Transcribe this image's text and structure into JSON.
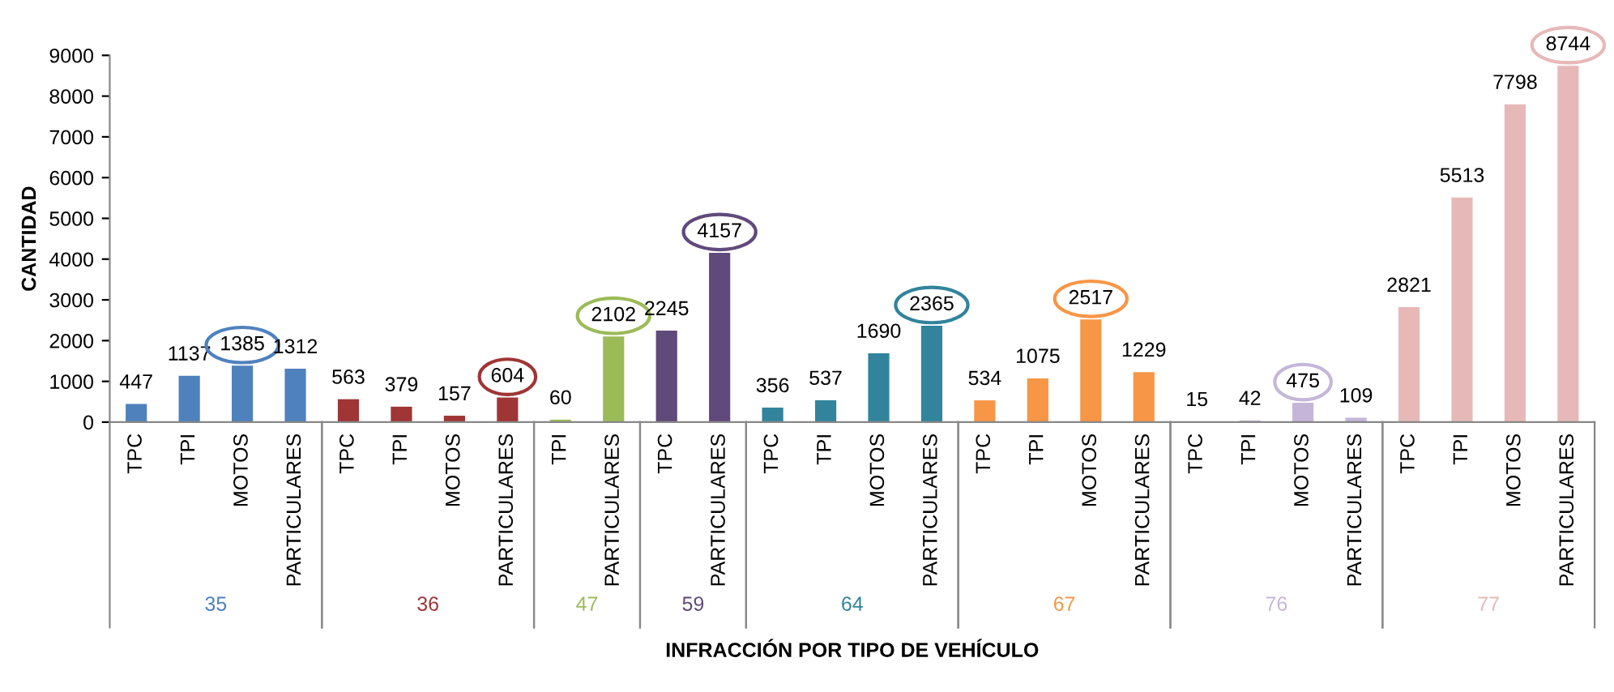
{
  "chart_data": {
    "type": "bar",
    "xlabel": "INFRACCIÓN POR TIPO DE VEHÍCULO",
    "ylabel": "CANTIDAD",
    "categories": [
      "TPC",
      "TPI",
      "MOTOS",
      "PARTICULARES",
      "TPC",
      "TPI",
      "MOTOS",
      "PARTICULARES",
      "TPI",
      "PARTICULARES",
      "TPC",
      "PARTICULARES",
      "TPC",
      "TPI",
      "MOTOS",
      "PARTICULARES",
      "TPC",
      "TPI",
      "MOTOS",
      "PARTICULARES",
      "TPC",
      "TPI",
      "MOTOS",
      "PARTICULARES",
      "TPC",
      "TPI",
      "MOTOS",
      "PARTICULARES"
    ],
    "series": [
      {
        "name": "35",
        "color": "#4f81bd",
        "values": [
          447,
          1137,
          1385,
          1312,
          null,
          null,
          null,
          null,
          null,
          null,
          null,
          null,
          null,
          null,
          null,
          null,
          null,
          null,
          null,
          null,
          null,
          null,
          null,
          null,
          null,
          null,
          null,
          null
        ]
      },
      {
        "name": "36",
        "color": "#a03535",
        "values": [
          null,
          null,
          null,
          null,
          563,
          379,
          157,
          604,
          null,
          null,
          null,
          null,
          null,
          null,
          null,
          null,
          null,
          null,
          null,
          null,
          null,
          null,
          null,
          null,
          null,
          null,
          null,
          null
        ]
      },
      {
        "name": "47",
        "color": "#9bbb59",
        "values": [
          null,
          null,
          null,
          null,
          null,
          null,
          null,
          null,
          60,
          2102,
          null,
          null,
          null,
          null,
          null,
          null,
          null,
          null,
          null,
          null,
          null,
          null,
          null,
          null,
          null,
          null,
          null,
          null
        ]
      },
      {
        "name": "59",
        "color": "#604a7b",
        "values": [
          null,
          null,
          null,
          null,
          null,
          null,
          null,
          null,
          null,
          null,
          2245,
          4157,
          null,
          null,
          null,
          null,
          null,
          null,
          null,
          null,
          null,
          null,
          null,
          null,
          null,
          null,
          null,
          null
        ]
      },
      {
        "name": "64",
        "color": "#31849b",
        "values": [
          null,
          null,
          null,
          null,
          null,
          null,
          null,
          null,
          null,
          null,
          null,
          null,
          356,
          537,
          1690,
          2365,
          null,
          null,
          null,
          null,
          null,
          null,
          null,
          null,
          null,
          null,
          null,
          null
        ]
      },
      {
        "name": "67",
        "color": "#f79646",
        "values": [
          null,
          null,
          null,
          null,
          null,
          null,
          null,
          null,
          null,
          null,
          null,
          null,
          null,
          null,
          null,
          null,
          534,
          1075,
          2517,
          1229,
          null,
          null,
          null,
          null,
          null,
          null,
          null,
          null
        ]
      },
      {
        "name": "76",
        "color": "#c5b6d9",
        "values": [
          null,
          null,
          null,
          null,
          null,
          null,
          null,
          null,
          null,
          null,
          null,
          null,
          null,
          null,
          null,
          null,
          null,
          null,
          null,
          null,
          15,
          42,
          475,
          109,
          null,
          null,
          null,
          null
        ]
      },
      {
        "name": "77",
        "color": "#e6b9b8",
        "values": [
          null,
          null,
          null,
          null,
          null,
          null,
          null,
          null,
          null,
          null,
          null,
          null,
          null,
          null,
          null,
          null,
          null,
          null,
          null,
          null,
          null,
          null,
          null,
          null,
          2821,
          5513,
          7798,
          8744
        ]
      }
    ],
    "ylim": [
      0,
      9000
    ],
    "yticks": [
      0,
      1000,
      2000,
      3000,
      4000,
      5000,
      6000,
      7000,
      8000,
      9000
    ],
    "data_labels": true,
    "grid": false
  }
}
